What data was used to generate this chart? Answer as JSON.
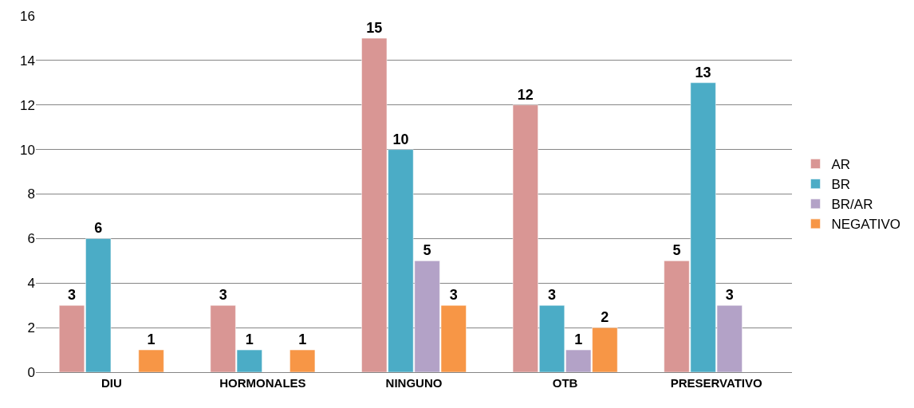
{
  "chart_data": {
    "type": "bar",
    "categories": [
      "DIU",
      "HORMONALES",
      "NINGUNO",
      "OTB",
      "PRESERVATIVO"
    ],
    "series": [
      {
        "name": "AR",
        "color": "#d99694",
        "values": [
          3,
          3,
          15,
          12,
          5
        ]
      },
      {
        "name": "BR",
        "color": "#4bacc6",
        "values": [
          6,
          1,
          10,
          3,
          13
        ]
      },
      {
        "name": "BR/AR",
        "color": "#b3a2c7",
        "values": [
          null,
          null,
          5,
          1,
          3
        ]
      },
      {
        "name": "NEGATIVO",
        "color": "#f79646",
        "values": [
          1,
          1,
          3,
          2,
          null
        ]
      }
    ],
    "ylim": [
      0,
      16
    ],
    "yticks": [
      0,
      2,
      4,
      6,
      8,
      10,
      12,
      14,
      16
    ],
    "grid": "y",
    "legend": "right",
    "data_labels": true
  }
}
